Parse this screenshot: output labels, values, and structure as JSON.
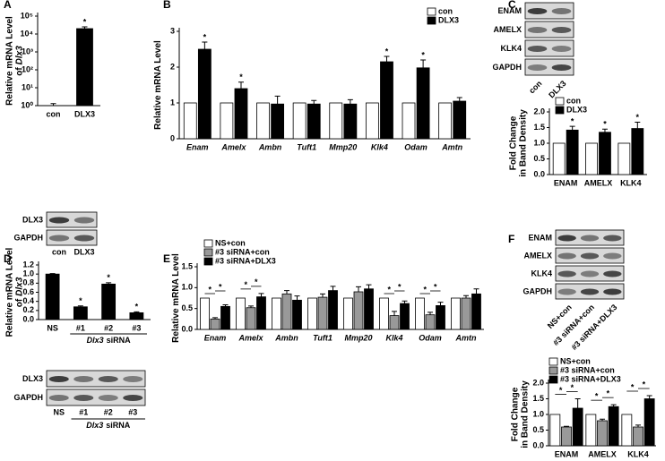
{
  "chart_data": [
    {
      "type": "bar",
      "panel": "A",
      "ylabel": [
        "Relative mRNA Level",
        "of",
        "Dlx3"
      ],
      "log_scale": true,
      "categories": [
        "con",
        "DLX3"
      ],
      "series": [
        {
          "name": null,
          "colors": [
            "#ffffff",
            "#000000"
          ],
          "values": [
            1,
            20000
          ],
          "errors": [
            0.3,
            5000
          ],
          "annotations": [
            null,
            "*"
          ]
        }
      ],
      "ylim": [
        1,
        100000
      ],
      "yticks": [
        {
          "value": 1,
          "label": "10⁰"
        },
        {
          "value": 10,
          "label": "10¹"
        },
        {
          "value": 100,
          "label": "10²"
        },
        {
          "value": 1000,
          "label": "10³"
        },
        {
          "value": 10000,
          "label": "10⁴"
        },
        {
          "value": 100000,
          "label": "10⁵"
        }
      ],
      "blot": {
        "rows": [
          "DLX3",
          "GAPDH"
        ],
        "lanes": [
          "con",
          "DLX3"
        ]
      }
    },
    {
      "type": "bar",
      "panel": "B",
      "ylabel": [
        "Relative mRNA Level"
      ],
      "italic_categories": true,
      "categories": [
        "Enam",
        "Amelx",
        "Ambn",
        "Tuft1",
        "Mmp20",
        "Klk4",
        "Odam",
        "Amtn"
      ],
      "series": [
        {
          "name": "con",
          "color": "#ffffff",
          "values": [
            1,
            1,
            1,
            1,
            1,
            1,
            1,
            1
          ]
        },
        {
          "name": "DLX3",
          "color": "#000000",
          "values": [
            2.5,
            1.4,
            0.97,
            0.97,
            0.97,
            2.15,
            1.98,
            1.05
          ],
          "errors": [
            0.2,
            0.18,
            0.22,
            0.1,
            0.12,
            0.15,
            0.22,
            0.1
          ],
          "annotations": [
            "*",
            "*",
            null,
            null,
            null,
            "*",
            "*",
            null
          ]
        }
      ],
      "ylim": [
        0,
        3
      ],
      "yticks": [
        0,
        1,
        2,
        3
      ]
    },
    {
      "type": "bar",
      "panel": "C",
      "ylabel": [
        "Fold Change",
        "in Band Density"
      ],
      "categories": [
        "ENAM",
        "AMELX",
        "KLK4"
      ],
      "series": [
        {
          "name": "con",
          "color": "#ffffff",
          "values": [
            1,
            1,
            1
          ]
        },
        {
          "name": "DLX3",
          "color": "#000000",
          "values": [
            1.42,
            1.35,
            1.47
          ],
          "errors": [
            0.12,
            0.1,
            0.2
          ],
          "annotations": [
            "*",
            "*",
            "*"
          ]
        }
      ],
      "ylim": [
        0,
        2
      ],
      "yticks": [
        {
          "value": 0,
          "label": "0.0"
        },
        {
          "value": 0.5,
          "label": "0.5"
        },
        {
          "value": 1,
          "label": "1.0"
        },
        {
          "value": 1.5,
          "label": "1.5"
        },
        {
          "value": 2,
          "label": "2.0"
        }
      ],
      "blot": {
        "rows": [
          "ENAM",
          "AMELX",
          "KLK4",
          "GAPDH"
        ],
        "lanes": [
          "con",
          "DLX3"
        ]
      }
    },
    {
      "type": "bar",
      "panel": "D",
      "ylabel": [
        "Relative mRNA Level",
        "of",
        "Dlx3"
      ],
      "categories": [
        "NS",
        "#1",
        "#2",
        "#3"
      ],
      "group_label": [
        "Dlx3",
        "siRNA"
      ],
      "series": [
        {
          "name": null,
          "color": "#000000",
          "values": [
            1.0,
            0.28,
            0.78,
            0.15
          ],
          "errors": [
            0.01,
            0.02,
            0.03,
            0.02
          ],
          "annotations": [
            null,
            "*",
            "*",
            "*"
          ]
        }
      ],
      "ylim": [
        0,
        1.2
      ],
      "yticks": [
        {
          "value": 0,
          "label": "0.0"
        },
        {
          "value": 0.2,
          "label": "0.2"
        },
        {
          "value": 0.4,
          "label": "0.4"
        },
        {
          "value": 0.6,
          "label": "0.6"
        },
        {
          "value": 0.8,
          "label": "0.8"
        },
        {
          "value": 1,
          "label": "1.0"
        },
        {
          "value": 1.2,
          "label": "1.2"
        }
      ],
      "blot": {
        "rows": [
          "DLX3",
          "GAPDH"
        ],
        "lanes": [
          "NS",
          "#1",
          "#2",
          "#3"
        ],
        "group_label": [
          "Dlx3",
          "siRNA"
        ]
      }
    },
    {
      "type": "bar",
      "panel": "E",
      "ylabel": [
        "Relative mRNA Level"
      ],
      "italic_categories": true,
      "categories": [
        "Enam",
        "Amelx",
        "Ambn",
        "Tuft1",
        "Mmp20",
        "Klk4",
        "Odam",
        "Amtn"
      ],
      "series": [
        {
          "name": "NS+con",
          "color": "#ffffff",
          "values": [
            0.75,
            0.75,
            0.75,
            0.75,
            0.75,
            0.75,
            0.75,
            0.75
          ]
        },
        {
          "name": "#3 siRNA+con",
          "color": "#999999",
          "values": [
            0.25,
            0.52,
            0.85,
            0.77,
            0.9,
            0.33,
            0.35,
            0.75
          ],
          "errors": [
            0.03,
            0.04,
            0.08,
            0.08,
            0.12,
            0.1,
            0.06,
            0.06
          ]
        },
        {
          "name": "#3 siRNA+DLX3",
          "color": "#000000",
          "values": [
            0.55,
            0.78,
            0.7,
            0.93,
            0.97,
            0.62,
            0.57,
            0.85
          ],
          "errors": [
            0.04,
            0.08,
            0.1,
            0.1,
            0.1,
            0.06,
            0.08,
            0.12
          ]
        }
      ],
      "comparisons": [
        {
          "category": 0,
          "pair": [
            0,
            1
          ],
          "text": "*"
        },
        {
          "category": 0,
          "pair": [
            1,
            2
          ],
          "text": "*"
        },
        {
          "category": 1,
          "pair": [
            0,
            1
          ],
          "text": "*"
        },
        {
          "category": 1,
          "pair": [
            1,
            2
          ],
          "text": "*"
        },
        {
          "category": 5,
          "pair": [
            0,
            1
          ],
          "text": "*"
        },
        {
          "category": 5,
          "pair": [
            1,
            2
          ],
          "text": "*"
        },
        {
          "category": 6,
          "pair": [
            0,
            1
          ],
          "text": "*"
        },
        {
          "category": 6,
          "pair": [
            1,
            2
          ],
          "text": "*"
        }
      ],
      "ylim": [
        0,
        1.5
      ],
      "yticks": [
        {
          "value": 0,
          "label": "0.0"
        },
        {
          "value": 0.5,
          "label": "0.5"
        },
        {
          "value": 1,
          "label": "1.0"
        },
        {
          "value": 1.5,
          "label": "1.5"
        }
      ]
    },
    {
      "type": "bar",
      "panel": "F",
      "ylabel": [
        "Fold Change",
        "in Band Density"
      ],
      "categories": [
        "ENAM",
        "AMELX",
        "KLK4"
      ],
      "series": [
        {
          "name": "NS+con",
          "color": "#ffffff",
          "values": [
            1,
            1,
            1
          ]
        },
        {
          "name": "#3 siRNA+con",
          "color": "#999999",
          "values": [
            0.6,
            0.8,
            0.6
          ],
          "errors": [
            0.02,
            0.05,
            0.06
          ]
        },
        {
          "name": "#3 siRNA+DLX3",
          "color": "#000000",
          "values": [
            1.2,
            1.25,
            1.5
          ],
          "errors": [
            0.3,
            0.06,
            0.1
          ]
        }
      ],
      "comparisons": [
        {
          "category": 0,
          "pair": [
            0,
            1
          ],
          "text": "*"
        },
        {
          "category": 0,
          "pair": [
            1,
            2
          ],
          "text": "*"
        },
        {
          "category": 1,
          "pair": [
            0,
            1
          ],
          "text": "*"
        },
        {
          "category": 1,
          "pair": [
            1,
            2
          ],
          "text": "*"
        },
        {
          "category": 2,
          "pair": [
            0,
            1
          ],
          "text": "*"
        },
        {
          "category": 2,
          "pair": [
            1,
            2
          ],
          "text": "*"
        }
      ],
      "ylim": [
        0,
        2
      ],
      "yticks": [
        {
          "value": 0,
          "label": "0.0"
        },
        {
          "value": 0.5,
          "label": "0.5"
        },
        {
          "value": 1,
          "label": "1.0"
        },
        {
          "value": 1.5,
          "label": "1.5"
        },
        {
          "value": 2,
          "label": "2.0"
        }
      ],
      "blot": {
        "rows": [
          "ENAM",
          "AMELX",
          "KLK4",
          "GAPDH"
        ],
        "lanes": [
          "NS+con",
          "#3 siRNA+con",
          "#3 siRNA+DLX3"
        ]
      }
    }
  ]
}
